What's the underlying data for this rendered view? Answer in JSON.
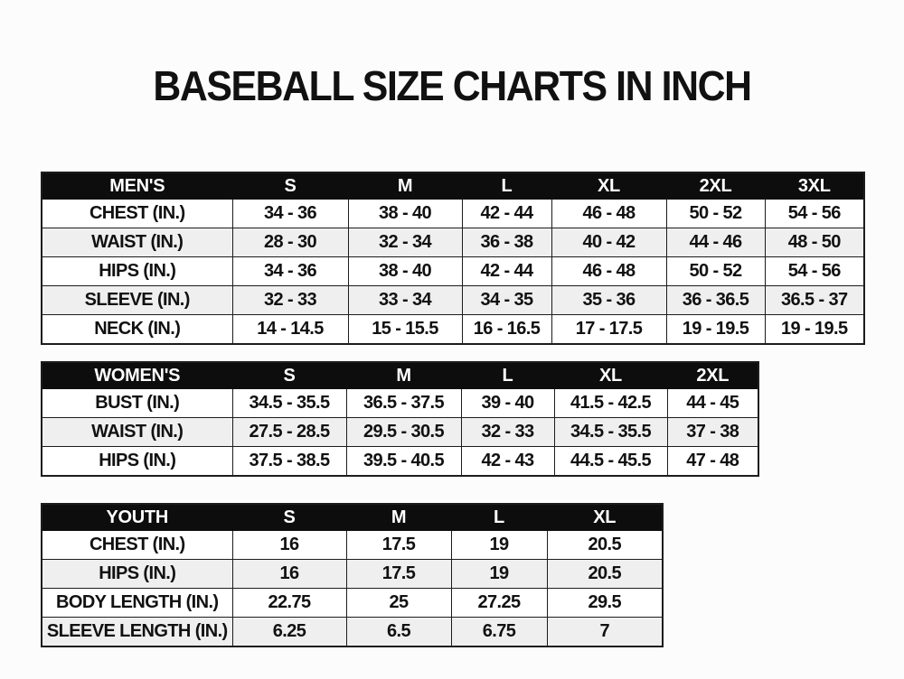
{
  "page": {
    "title": "BASEBALL SIZE CHARTS IN INCH"
  },
  "colors": {
    "page_bg": "#fcfcfc",
    "text": "#111111",
    "header_bg": "#0d0d0d",
    "header_text": "#ffffff",
    "row_bg": "#ffffff",
    "row_alt_bg": "#efefef",
    "border": "#1c1c1c"
  },
  "chart_data": [
    {
      "type": "table",
      "name": "mens",
      "header": [
        "MEN'S",
        "S",
        "M",
        "L",
        "XL",
        "2XL",
        "3XL"
      ],
      "rows": [
        [
          "CHEST (IN.)",
          "34 - 36",
          "38 - 40",
          "42 - 44",
          "46 - 48",
          "50 - 52",
          "54 - 56"
        ],
        [
          "WAIST (IN.)",
          "28 - 30",
          "32 - 34",
          "36 - 38",
          "40 - 42",
          "44 - 46",
          "48 - 50"
        ],
        [
          "HIPS (IN.)",
          "34 - 36",
          "38 - 40",
          "42 - 44",
          "46 - 48",
          "50 - 52",
          "54 - 56"
        ],
        [
          "SLEEVE (IN.)",
          "32 - 33",
          "33 - 34",
          "34 - 35",
          "35 - 36",
          "36 - 36.5",
          "36.5 - 37"
        ],
        [
          "NECK (IN.)",
          "14 - 14.5",
          "15 - 15.5",
          "16 - 16.5",
          "17 - 17.5",
          "19 - 19.5",
          "19 - 19.5"
        ]
      ]
    },
    {
      "type": "table",
      "name": "womens",
      "header": [
        "WOMEN'S",
        "S",
        "M",
        "L",
        "XL",
        "2XL"
      ],
      "rows": [
        [
          "BUST (IN.)",
          "34.5 - 35.5",
          "36.5 - 37.5",
          "39 - 40",
          "41.5 - 42.5",
          "44 - 45"
        ],
        [
          "WAIST (IN.)",
          "27.5 - 28.5",
          "29.5 - 30.5",
          "32 - 33",
          "34.5 - 35.5",
          "37 - 38"
        ],
        [
          "HIPS (IN.)",
          "37.5 - 38.5",
          "39.5 - 40.5",
          "42 - 43",
          "44.5 - 45.5",
          "47 - 48"
        ]
      ]
    },
    {
      "type": "table",
      "name": "youth",
      "header": [
        "YOUTH",
        "S",
        "M",
        "L",
        "XL"
      ],
      "rows": [
        [
          "CHEST (IN.)",
          "16",
          "17.5",
          "19",
          "20.5"
        ],
        [
          "HIPS (IN.)",
          "16",
          "17.5",
          "19",
          "20.5"
        ],
        [
          "BODY LENGTH (IN.)",
          "22.75",
          "25",
          "27.25",
          "29.5"
        ],
        [
          "SLEEVE LENGTH (IN.)",
          "6.25",
          "6.5",
          "6.75",
          "7"
        ]
      ]
    }
  ]
}
